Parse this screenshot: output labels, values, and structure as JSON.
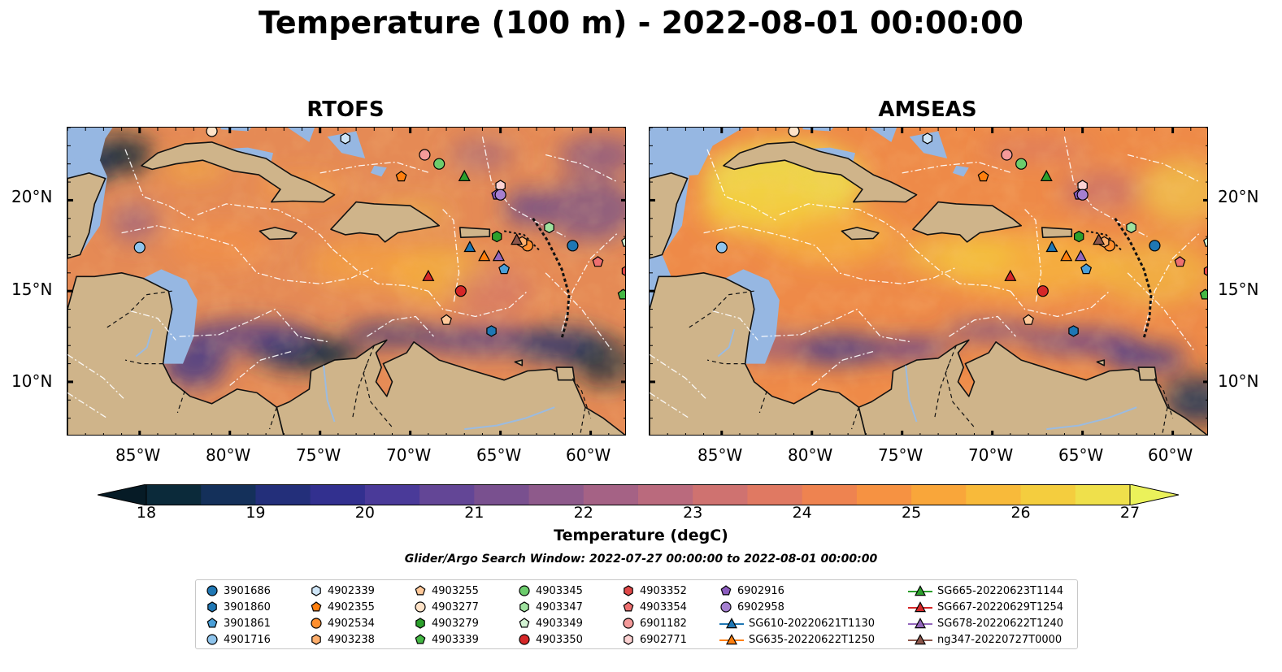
{
  "title": "Temperature (100 m) - 2022-08-01 00:00:00",
  "panels": [
    {
      "title": "RTOFS"
    },
    {
      "title": "AMSEAS"
    }
  ],
  "axes": {
    "lat_ticks": [
      "20°N",
      "15°N",
      "10°N"
    ],
    "lon_ticks": [
      "85°W",
      "80°W",
      "75°W",
      "70°W",
      "65°W",
      "60°W"
    ]
  },
  "colorbar": {
    "label": "Temperature (degC)",
    "ticks": [
      "18",
      "19",
      "20",
      "21",
      "22",
      "23",
      "24",
      "25",
      "26",
      "27"
    ],
    "min": 18,
    "max": 27,
    "colors": [
      "#0b2a3a",
      "#14305a",
      "#232f7a",
      "#32308f",
      "#4a3a99",
      "#634696",
      "#79508f",
      "#8e5a8b",
      "#a56285",
      "#ba6a7d",
      "#cf7270",
      "#e07962",
      "#ee8350",
      "#f69242",
      "#f9a63a",
      "#f8ba3a",
      "#f4cd3e",
      "#efe04b"
    ],
    "under_color": "#061b26",
    "over_color": "#ebf25a"
  },
  "subtitle": "Glider/Argo Search Window: 2022-07-27 00:00:00 to 2022-08-01 00:00:00",
  "legend": {
    "columns": [
      [
        {
          "label": "3901686",
          "marker": "circle",
          "color": "#1f77b4"
        },
        {
          "label": "3901860",
          "marker": "hexagon",
          "color": "#1f77b4"
        },
        {
          "label": "3901861",
          "marker": "pentagon",
          "color": "#4a9fd8"
        },
        {
          "label": "4901716",
          "marker": "circle",
          "color": "#8fc4ec"
        }
      ],
      [
        {
          "label": "4902339",
          "marker": "hexagon",
          "color": "#cfe6f8"
        },
        {
          "label": "4902355",
          "marker": "pentagon",
          "color": "#ff7f0e"
        },
        {
          "label": "4902534",
          "marker": "circle",
          "color": "#ff8f2e"
        },
        {
          "label": "4903238",
          "marker": "hexagon",
          "color": "#ffae6b"
        }
      ],
      [
        {
          "label": "4903255",
          "marker": "pentagon",
          "color": "#ffc99a"
        },
        {
          "label": "4903277",
          "marker": "circle",
          "color": "#ffe3c8"
        },
        {
          "label": "4903279",
          "marker": "hexagon",
          "color": "#2ca02c"
        },
        {
          "label": "4903339",
          "marker": "pentagon",
          "color": "#44b844"
        }
      ],
      [
        {
          "label": "4903345",
          "marker": "circle",
          "color": "#6ccc6c"
        },
        {
          "label": "4903347",
          "marker": "hexagon",
          "color": "#9fe29f"
        },
        {
          "label": "4903349",
          "marker": "pentagon",
          "color": "#d2f2d2"
        },
        {
          "label": "4903350",
          "marker": "circle",
          "color": "#d62728"
        }
      ],
      [
        {
          "label": "4903352",
          "marker": "hexagon",
          "color": "#e04848"
        },
        {
          "label": "4903354",
          "marker": "pentagon",
          "color": "#ee7070"
        },
        {
          "label": "6901182",
          "marker": "circle",
          "color": "#f49a9a"
        },
        {
          "label": "6902771",
          "marker": "hexagon",
          "color": "#fcd2d2"
        }
      ],
      [
        {
          "label": "6902916",
          "marker": "pentagon",
          "color": "#8c5cbf"
        },
        {
          "label": "6902958",
          "marker": "circle",
          "color": "#a57fd0"
        },
        {
          "label": "SG610-20220621T1130",
          "marker": "triangle-line",
          "color": "#1f77b4"
        },
        {
          "label": "SG635-20220622T1250",
          "marker": "triangle-line",
          "color": "#ff7f0e"
        }
      ],
      [
        {
          "label": "SG665-20220623T1144",
          "marker": "triangle-line",
          "color": "#2ca02c"
        },
        {
          "label": "SG667-20220629T1254",
          "marker": "triangle-line",
          "color": "#d62728"
        },
        {
          "label": "SG678-20220622T1240",
          "marker": "triangle-line",
          "color": "#9467bd"
        },
        {
          "label": "ng347-20220727T0000",
          "marker": "triangle-line",
          "color": "#8c564b"
        }
      ]
    ]
  },
  "map_colors": {
    "land": "#cfb48a",
    "shallow_water": "#96b7e2",
    "coast": "#111111",
    "eez": "#ffffff"
  },
  "observations": [
    {
      "id": "3901686",
      "lon": -61.0,
      "lat": 17.5
    },
    {
      "id": "3901860",
      "lon": -65.5,
      "lat": 12.8
    },
    {
      "id": "3901861",
      "lon": -64.8,
      "lat": 16.2
    },
    {
      "id": "4901716",
      "lon": -85.0,
      "lat": 17.4
    },
    {
      "id": "4902339",
      "lon": -73.6,
      "lat": 23.4
    },
    {
      "id": "4902355",
      "lon": -70.5,
      "lat": 21.3
    },
    {
      "id": "4902534",
      "lon": -63.5,
      "lat": 17.5
    },
    {
      "id": "4903238",
      "lon": -63.8,
      "lat": 17.7
    },
    {
      "id": "4903255",
      "lon": -68.0,
      "lat": 13.4
    },
    {
      "id": "4903277",
      "lon": -81.0,
      "lat": 23.8
    },
    {
      "id": "4903279",
      "lon": -65.2,
      "lat": 18.0
    },
    {
      "id": "4903339",
      "lon": -58.2,
      "lat": 14.8
    },
    {
      "id": "4903345",
      "lon": -68.4,
      "lat": 22.0
    },
    {
      "id": "4903347",
      "lon": -62.3,
      "lat": 18.5
    },
    {
      "id": "4903349",
      "lon": -58.0,
      "lat": 17.7
    },
    {
      "id": "4903350",
      "lon": -67.2,
      "lat": 15.0
    },
    {
      "id": "4903352",
      "lon": -58.0,
      "lat": 16.1
    },
    {
      "id": "4903354",
      "lon": -59.6,
      "lat": 16.6
    },
    {
      "id": "6901182",
      "lon": -69.2,
      "lat": 22.5
    },
    {
      "id": "6902771",
      "lon": -65.0,
      "lat": 20.8
    },
    {
      "id": "6902916",
      "lon": -65.2,
      "lat": 20.3
    },
    {
      "id": "6902958",
      "lon": -65.0,
      "lat": 20.3
    },
    {
      "id": "SG610-20220621T1130",
      "lon": -66.7,
      "lat": 17.4
    },
    {
      "id": "SG635-20220622T1250",
      "lon": -65.9,
      "lat": 16.9
    },
    {
      "id": "SG665-20220623T1144",
      "lon": -67.0,
      "lat": 21.3
    },
    {
      "id": "SG667-20220629T1254",
      "lon": -69.0,
      "lat": 15.8
    },
    {
      "id": "SG678-20220622T1240",
      "lon": -65.1,
      "lat": 16.9
    },
    {
      "id": "ng347-20220727T0000",
      "lon": -64.1,
      "lat": 17.8
    }
  ],
  "map_extent": {
    "lon_min": -89,
    "lon_max": -58,
    "lat_min": 7,
    "lat_max": 24
  }
}
